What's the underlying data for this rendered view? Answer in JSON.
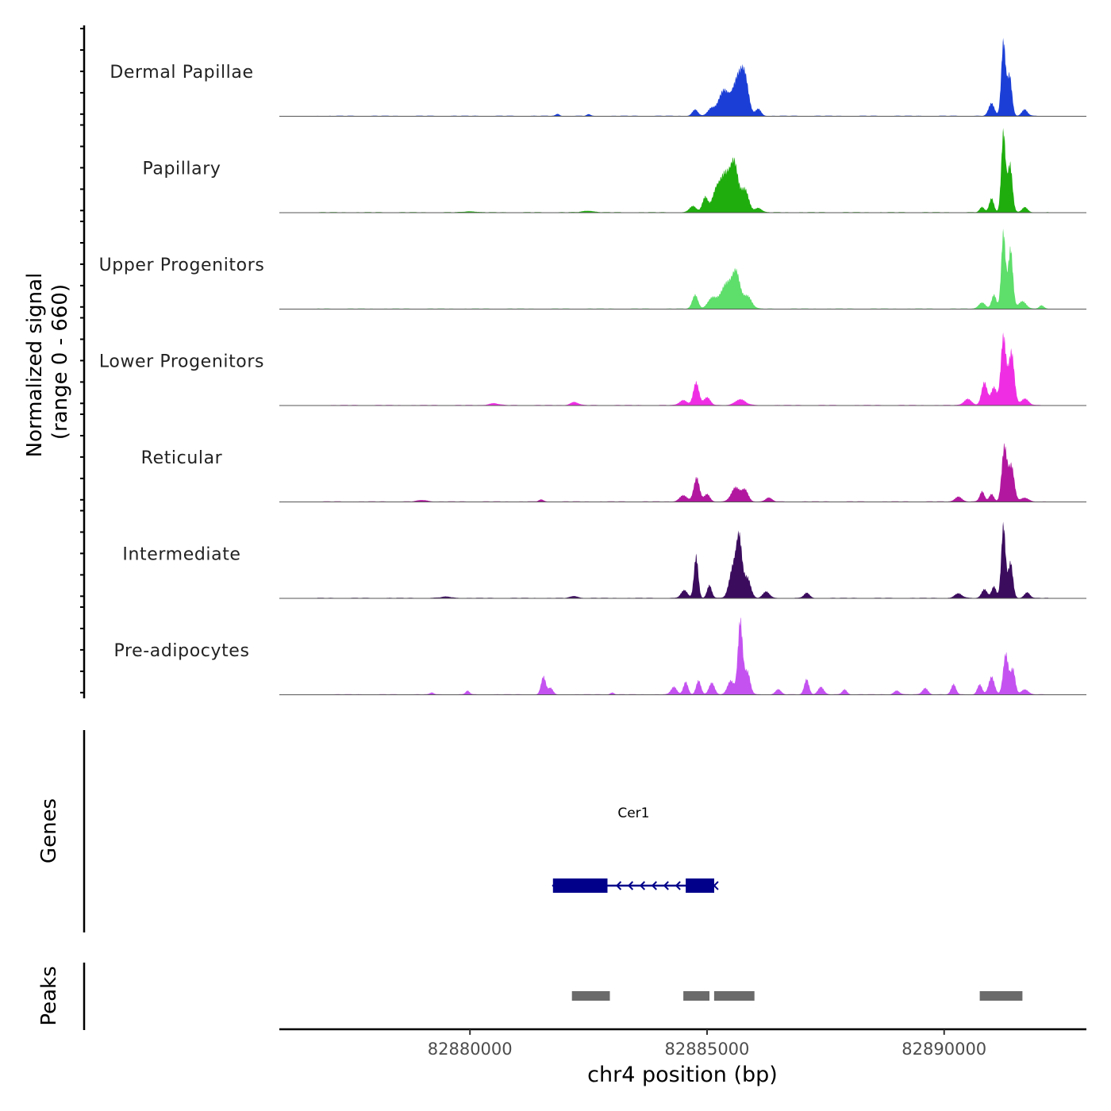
{
  "chart_data": {
    "type": "area",
    "title": "",
    "ylabel_line1": "Normalized signal",
    "ylabel_line2": "(range 0 - 660)",
    "y_range": [
      0,
      660
    ],
    "xlabel": "chr4 position (bp)",
    "x_range": [
      82875980,
      82893000
    ],
    "x_ticks": [
      82880000,
      82885000,
      82890000
    ],
    "x_tick_labels": [
      "82880000",
      "82885000",
      "82890000"
    ],
    "signal_end": 82892200,
    "tracks": [
      {
        "name": "Dermal Papillae",
        "color": "#1b3fd6",
        "peaks": [
          {
            "c": 82884750,
            "w": 60,
            "h": 50
          },
          {
            "c": 82885080,
            "w": 70,
            "h": 55
          },
          {
            "c": 82885350,
            "w": 110,
            "h": 200
          },
          {
            "c": 82885650,
            "w": 110,
            "h": 290
          },
          {
            "c": 82885800,
            "w": 80,
            "h": 240
          },
          {
            "c": 82886080,
            "w": 60,
            "h": 55
          },
          {
            "c": 82891000,
            "w": 60,
            "h": 100
          },
          {
            "c": 82891250,
            "w": 45,
            "h": 580
          },
          {
            "c": 82891380,
            "w": 50,
            "h": 320
          },
          {
            "c": 82891700,
            "w": 60,
            "h": 50
          },
          {
            "c": 82882500,
            "w": 40,
            "h": 12
          },
          {
            "c": 82881850,
            "w": 40,
            "h": 15
          }
        ]
      },
      {
        "name": "Papillary",
        "color": "#1fad0e",
        "peaks": [
          {
            "c": 82884700,
            "w": 70,
            "h": 50
          },
          {
            "c": 82884960,
            "w": 60,
            "h": 120
          },
          {
            "c": 82885380,
            "w": 110,
            "h": 300
          },
          {
            "c": 82885580,
            "w": 80,
            "h": 350
          },
          {
            "c": 82885180,
            "w": 80,
            "h": 140
          },
          {
            "c": 82885800,
            "w": 80,
            "h": 180
          },
          {
            "c": 82886080,
            "w": 70,
            "h": 35
          },
          {
            "c": 82890800,
            "w": 50,
            "h": 40
          },
          {
            "c": 82891000,
            "w": 50,
            "h": 110
          },
          {
            "c": 82891250,
            "w": 45,
            "h": 630
          },
          {
            "c": 82891390,
            "w": 50,
            "h": 380
          },
          {
            "c": 82891700,
            "w": 60,
            "h": 40
          },
          {
            "c": 82880000,
            "w": 120,
            "h": 8
          },
          {
            "c": 82882500,
            "w": 120,
            "h": 12
          }
        ]
      },
      {
        "name": "Upper Progenitors",
        "color": "#5ede6b",
        "peaks": [
          {
            "c": 82884750,
            "w": 60,
            "h": 110
          },
          {
            "c": 82885100,
            "w": 90,
            "h": 80
          },
          {
            "c": 82885420,
            "w": 130,
            "h": 200
          },
          {
            "c": 82885620,
            "w": 80,
            "h": 240
          },
          {
            "c": 82885850,
            "w": 90,
            "h": 100
          },
          {
            "c": 82890800,
            "w": 70,
            "h": 50
          },
          {
            "c": 82891050,
            "w": 50,
            "h": 110
          },
          {
            "c": 82891250,
            "w": 45,
            "h": 600
          },
          {
            "c": 82891400,
            "w": 50,
            "h": 470
          },
          {
            "c": 82891650,
            "w": 80,
            "h": 60
          },
          {
            "c": 82892050,
            "w": 50,
            "h": 25
          }
        ]
      },
      {
        "name": "Lower Progenitors",
        "color": "#ef2ee4",
        "peaks": [
          {
            "c": 82884500,
            "w": 80,
            "h": 40
          },
          {
            "c": 82884770,
            "w": 60,
            "h": 180
          },
          {
            "c": 82885000,
            "w": 70,
            "h": 60
          },
          {
            "c": 82885700,
            "w": 110,
            "h": 45
          },
          {
            "c": 82882200,
            "w": 80,
            "h": 25
          },
          {
            "c": 82880500,
            "w": 100,
            "h": 15
          },
          {
            "c": 82890500,
            "w": 80,
            "h": 50
          },
          {
            "c": 82890850,
            "w": 60,
            "h": 180
          },
          {
            "c": 82891050,
            "w": 60,
            "h": 140
          },
          {
            "c": 82891250,
            "w": 55,
            "h": 540
          },
          {
            "c": 82891420,
            "w": 60,
            "h": 420
          },
          {
            "c": 82891700,
            "w": 80,
            "h": 50
          }
        ]
      },
      {
        "name": "Reticular",
        "color": "#b1189f",
        "peaks": [
          {
            "c": 82884500,
            "w": 80,
            "h": 50
          },
          {
            "c": 82884780,
            "w": 60,
            "h": 190
          },
          {
            "c": 82885000,
            "w": 60,
            "h": 60
          },
          {
            "c": 82885600,
            "w": 90,
            "h": 110
          },
          {
            "c": 82885800,
            "w": 70,
            "h": 90
          },
          {
            "c": 82886300,
            "w": 70,
            "h": 30
          },
          {
            "c": 82881500,
            "w": 50,
            "h": 15
          },
          {
            "c": 82879000,
            "w": 100,
            "h": 12
          },
          {
            "c": 82890300,
            "w": 70,
            "h": 40
          },
          {
            "c": 82890800,
            "w": 50,
            "h": 80
          },
          {
            "c": 82891000,
            "w": 50,
            "h": 60
          },
          {
            "c": 82891270,
            "w": 55,
            "h": 430
          },
          {
            "c": 82891420,
            "w": 60,
            "h": 280
          },
          {
            "c": 82891700,
            "w": 80,
            "h": 30
          }
        ]
      },
      {
        "name": "Intermediate",
        "color": "#3b0c5e",
        "peaks": [
          {
            "c": 82884520,
            "w": 70,
            "h": 60
          },
          {
            "c": 82884770,
            "w": 45,
            "h": 330
          },
          {
            "c": 82885050,
            "w": 50,
            "h": 100
          },
          {
            "c": 82885550,
            "w": 80,
            "h": 240
          },
          {
            "c": 82885680,
            "w": 60,
            "h": 440
          },
          {
            "c": 82885850,
            "w": 70,
            "h": 160
          },
          {
            "c": 82886250,
            "w": 70,
            "h": 50
          },
          {
            "c": 82887100,
            "w": 60,
            "h": 40
          },
          {
            "c": 82882200,
            "w": 80,
            "h": 15
          },
          {
            "c": 82879500,
            "w": 120,
            "h": 10
          },
          {
            "c": 82890300,
            "w": 80,
            "h": 35
          },
          {
            "c": 82890850,
            "w": 60,
            "h": 70
          },
          {
            "c": 82891050,
            "w": 50,
            "h": 90
          },
          {
            "c": 82891250,
            "w": 45,
            "h": 570
          },
          {
            "c": 82891400,
            "w": 50,
            "h": 280
          },
          {
            "c": 82891750,
            "w": 60,
            "h": 45
          }
        ]
      },
      {
        "name": "Pre-adipocytes",
        "color": "#c452f0",
        "peaks": [
          {
            "c": 82881550,
            "w": 50,
            "h": 140
          },
          {
            "c": 82881700,
            "w": 50,
            "h": 50
          },
          {
            "c": 82879950,
            "w": 40,
            "h": 30
          },
          {
            "c": 82879200,
            "w": 40,
            "h": 15
          },
          {
            "c": 82883000,
            "w": 40,
            "h": 15
          },
          {
            "c": 82884300,
            "w": 60,
            "h": 60
          },
          {
            "c": 82884550,
            "w": 50,
            "h": 100
          },
          {
            "c": 82884820,
            "w": 50,
            "h": 110
          },
          {
            "c": 82885100,
            "w": 60,
            "h": 90
          },
          {
            "c": 82885500,
            "w": 70,
            "h": 110
          },
          {
            "c": 82885700,
            "w": 50,
            "h": 580
          },
          {
            "c": 82885850,
            "w": 60,
            "h": 180
          },
          {
            "c": 82886500,
            "w": 60,
            "h": 40
          },
          {
            "c": 82887100,
            "w": 50,
            "h": 120
          },
          {
            "c": 82887400,
            "w": 60,
            "h": 60
          },
          {
            "c": 82887900,
            "w": 50,
            "h": 40
          },
          {
            "c": 82889000,
            "w": 60,
            "h": 30
          },
          {
            "c": 82889600,
            "w": 60,
            "h": 50
          },
          {
            "c": 82890200,
            "w": 50,
            "h": 80
          },
          {
            "c": 82890750,
            "w": 50,
            "h": 80
          },
          {
            "c": 82891000,
            "w": 60,
            "h": 140
          },
          {
            "c": 82891300,
            "w": 55,
            "h": 320
          },
          {
            "c": 82891450,
            "w": 50,
            "h": 200
          },
          {
            "c": 82891700,
            "w": 70,
            "h": 40
          }
        ]
      }
    ],
    "genes_label": "Genes",
    "genes": [
      {
        "name": "Cer1",
        "color": "#00008b",
        "start": 82881750,
        "end": 82885150,
        "strand": "-",
        "exons": [
          [
            82881750,
            82882900
          ],
          [
            82884550,
            82885150
          ]
        ],
        "arrows": [
          82883100,
          82883350,
          82883600,
          82883850,
          82884100,
          82884350
        ]
      }
    ],
    "peaks_label": "Peaks",
    "peak_color": "#6b6b6b",
    "peak_regions": [
      [
        82882150,
        82882950
      ],
      [
        82884500,
        82885050
      ],
      [
        82885150,
        82886000
      ],
      [
        82890750,
        82891650
      ]
    ]
  }
}
